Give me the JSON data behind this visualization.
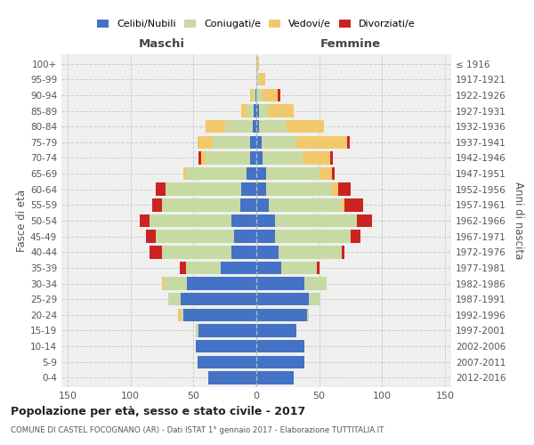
{
  "age_groups": [
    "0-4",
    "5-9",
    "10-14",
    "15-19",
    "20-24",
    "25-29",
    "30-34",
    "35-39",
    "40-44",
    "45-49",
    "50-54",
    "55-59",
    "60-64",
    "65-69",
    "70-74",
    "75-79",
    "80-84",
    "85-89",
    "90-94",
    "95-99",
    "100+"
  ],
  "birth_years": [
    "2012-2016",
    "2007-2011",
    "2002-2006",
    "1997-2001",
    "1992-1996",
    "1987-1991",
    "1982-1986",
    "1977-1981",
    "1972-1976",
    "1967-1971",
    "1962-1966",
    "1957-1961",
    "1952-1956",
    "1947-1951",
    "1942-1946",
    "1937-1941",
    "1932-1936",
    "1927-1931",
    "1922-1926",
    "1917-1921",
    "≤ 1916"
  ],
  "maschi": {
    "celibi": [
      38,
      47,
      48,
      46,
      58,
      60,
      55,
      28,
      20,
      18,
      20,
      13,
      12,
      8,
      5,
      5,
      3,
      2,
      1,
      0,
      0
    ],
    "coniugati": [
      0,
      0,
      0,
      2,
      2,
      10,
      18,
      28,
      55,
      62,
      65,
      62,
      60,
      48,
      35,
      30,
      22,
      5,
      2,
      0,
      0
    ],
    "vedovi": [
      0,
      0,
      0,
      0,
      2,
      0,
      2,
      0,
      0,
      0,
      0,
      0,
      0,
      2,
      4,
      12,
      15,
      5,
      2,
      0,
      0
    ],
    "divorziati": [
      0,
      0,
      0,
      0,
      0,
      0,
      0,
      5,
      10,
      8,
      8,
      8,
      8,
      0,
      2,
      0,
      0,
      0,
      0,
      0,
      0
    ]
  },
  "femmine": {
    "nubili": [
      30,
      38,
      38,
      32,
      40,
      42,
      38,
      20,
      18,
      15,
      15,
      10,
      8,
      8,
      5,
      4,
      2,
      2,
      0,
      0,
      0
    ],
    "coniugate": [
      0,
      0,
      0,
      0,
      2,
      8,
      18,
      28,
      50,
      60,
      65,
      58,
      52,
      42,
      32,
      28,
      22,
      8,
      5,
      2,
      0
    ],
    "vedove": [
      0,
      0,
      0,
      0,
      0,
      0,
      0,
      0,
      0,
      0,
      0,
      2,
      5,
      10,
      22,
      40,
      30,
      20,
      12,
      5,
      2
    ],
    "divorziate": [
      0,
      0,
      0,
      0,
      0,
      0,
      0,
      2,
      2,
      8,
      12,
      15,
      10,
      2,
      2,
      2,
      0,
      0,
      2,
      0,
      0
    ]
  },
  "colors": {
    "celibi": "#4472c4",
    "coniugati": "#c8daa4",
    "vedovi": "#f2c96a",
    "divorziati": "#cc2222"
  },
  "xlim": 155,
  "title": "Popolazione per età, sesso e stato civile - 2017",
  "subtitle": "COMUNE DI CASTEL FOCOGNANO (AR) - Dati ISTAT 1° gennaio 2017 - Elaborazione TUTTITALIA.IT",
  "ylabel_left": "Fasce di età",
  "ylabel_right": "Anni di nascita",
  "label_maschi": "Maschi",
  "label_femmine": "Femmine",
  "legend_labels": [
    "Celibi/Nubili",
    "Coniugati/e",
    "Vedovi/e",
    "Divorziati/e"
  ],
  "bg_color": "#efefef"
}
